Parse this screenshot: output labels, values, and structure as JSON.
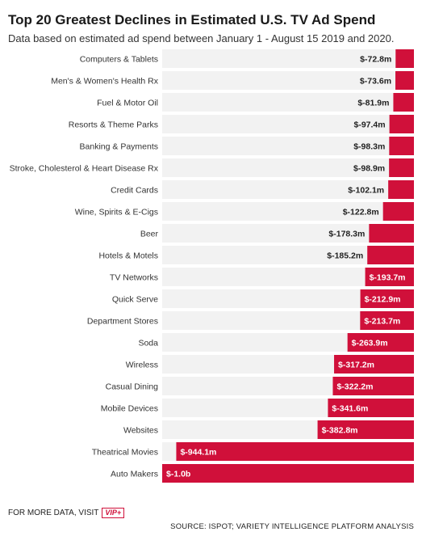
{
  "chart_data": {
    "type": "bar",
    "orientation": "horizontal",
    "title": "Top 20 Greatest Declines in Estimated U.S. TV Ad Spend",
    "subtitle": "Data based on estimated ad spend between January 1 - August 15 2019 and 2020.",
    "categories": [
      "Computers & Tablets",
      "Men's & Women's Health Rx",
      "Fuel & Motor Oil",
      "Resorts & Theme Parks",
      "Banking & Payments",
      "Stroke, Cholesterol & Heart Disease Rx",
      "Credit Cards",
      "Wine, Spirits & E-Cigs",
      "Beer",
      "Hotels & Motels",
      "TV Networks",
      "Quick Serve",
      "Department Stores",
      "Soda",
      "Wireless",
      "Casual Dining",
      "Mobile Devices",
      "Websites",
      "Theatrical Movies",
      "Auto Makers"
    ],
    "values": [
      -72.8,
      -73.6,
      -81.9,
      -97.4,
      -98.3,
      -98.9,
      -102.1,
      -122.8,
      -178.3,
      -185.2,
      -193.7,
      -212.9,
      -213.7,
      -263.9,
      -317.2,
      -322.2,
      -341.6,
      -382.8,
      -944.1,
      -1000
    ],
    "value_labels": [
      "$-72.8m",
      "$-73.6m",
      "$-81.9m",
      "$-97.4m",
      "$-98.3m",
      "$-98.9m",
      "$-102.1m",
      "$-122.8m",
      "$-178.3m",
      "$-185.2m",
      "$-193.7m",
      "$-212.9m",
      "$-213.7m",
      "$-263.9m",
      "$-317.2m",
      "$-322.2m",
      "$-341.6m",
      "$-382.8m",
      "$-944.1m",
      "$-1.0b"
    ],
    "unit": "millions USD",
    "xlim": [
      -1000,
      0
    ],
    "bar_color": "#d0103a",
    "track_color": "#f2f2f2",
    "grid": false,
    "legend": "none"
  },
  "footer": {
    "more_data_text": "FOR MORE DATA, VISIT",
    "vip_logo_text": "VIP+",
    "source": "SOURCE: ISPOT; VARIETY INTELLIGENCE PLATFORM ANALYSIS"
  }
}
